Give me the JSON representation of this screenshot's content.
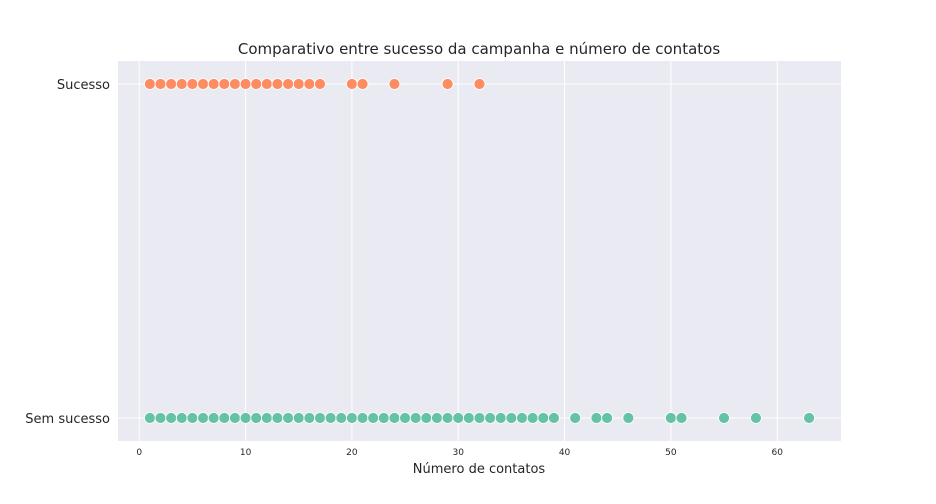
{
  "chart_data": {
    "type": "scatter",
    "title": "Comparativo entre sucesso da campanha e número de contatos",
    "xlabel": "Número de contatos",
    "ylabel": "",
    "xlim": [
      -2,
      66
    ],
    "x_ticks": [
      0,
      10,
      20,
      30,
      40,
      50,
      60
    ],
    "categories": [
      "Sucesso",
      "Sem sucesso"
    ],
    "grid": true,
    "legend": "none",
    "series": [
      {
        "category": "Sucesso",
        "color": "#fc8d62",
        "x": [
          1,
          2,
          3,
          4,
          5,
          6,
          7,
          8,
          9,
          10,
          11,
          12,
          13,
          14,
          15,
          16,
          17,
          20,
          21,
          24,
          29,
          32
        ]
      },
      {
        "category": "Sem sucesso",
        "color": "#66c2a5",
        "x": [
          1,
          2,
          3,
          4,
          5,
          6,
          7,
          8,
          9,
          10,
          11,
          12,
          13,
          14,
          15,
          16,
          17,
          18,
          19,
          20,
          21,
          22,
          23,
          24,
          25,
          26,
          27,
          28,
          29,
          30,
          31,
          32,
          33,
          34,
          35,
          36,
          37,
          38,
          39,
          41,
          43,
          44,
          46,
          50,
          51,
          55,
          58,
          63
        ]
      }
    ]
  },
  "colors": {
    "plot_background": "#eaeaf2",
    "grid": "#ffffff"
  }
}
